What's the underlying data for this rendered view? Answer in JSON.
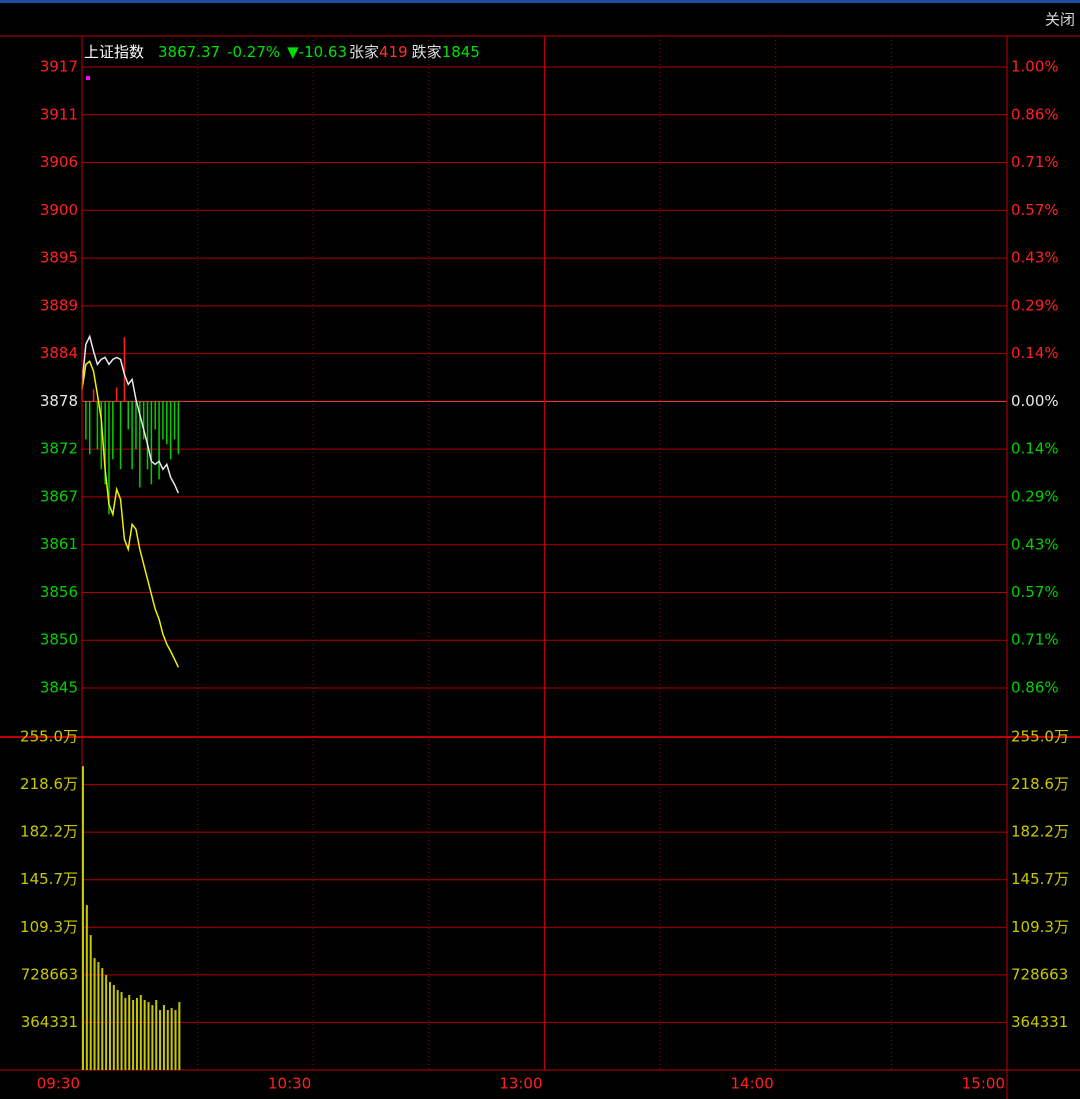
{
  "toolbar": {
    "close": "关闭"
  },
  "chart_data": [
    {
      "type": "line",
      "header": {
        "name": "上证指数",
        "price": "3867.37",
        "change_pct": "-0.27%",
        "change": "▼-10.63",
        "up_label": "张家",
        "up_count": "419",
        "down_label": "跌家",
        "down_count": "1845"
      },
      "x": [
        0,
        1,
        2,
        3,
        4,
        5,
        6,
        7,
        8,
        9,
        10,
        11,
        12,
        13,
        14,
        15,
        16,
        17,
        18,
        19,
        20,
        21,
        22,
        23,
        24,
        25
      ],
      "xlim": [
        0,
        240
      ],
      "series": [
        {
          "name": "上证指数",
          "color": "#e8e8e8",
          "values": [
            3879.97,
            3884.61,
            3885.53,
            3883.8,
            3882.29,
            3882.87,
            3883.1,
            3882.29,
            3882.87,
            3883.1,
            3882.87,
            3881.13,
            3879.97,
            3880.55,
            3878.23,
            3876.49,
            3874.75,
            3873.02,
            3871.05,
            3870.7,
            3871.05,
            3870.12,
            3870.7,
            3869.19,
            3868.38,
            3867.37
          ]
        },
        {
          "color": "#f0f000",
          "values": [
            3879.39,
            3882.29,
            3882.64,
            3881.48,
            3878.81,
            3875.91,
            3870.12,
            3866.06,
            3864.9,
            3867.8,
            3866.64,
            3862.01,
            3860.85,
            3863.74,
            3863.16,
            3860.85,
            3859.11,
            3857.37,
            3855.63,
            3853.89,
            3852.73,
            3851.0,
            3849.84,
            3849.02,
            3848.1,
            3847.17
          ]
        }
      ],
      "bars": {
        "baseline": 3878,
        "up_color": "#ff2020",
        "down_color": "#00d000",
        "values": [
          3879.97,
          3873.6,
          3871.86,
          3879.39,
          3872.44,
          3870.12,
          3868.38,
          3864.9,
          3871.28,
          3879.62,
          3870.12,
          3885.42,
          3874.75,
          3870.12,
          3872.44,
          3868.03,
          3873.6,
          3870.12,
          3868.38,
          3874.75,
          3868.96,
          3873.6,
          3873.02,
          3871.28,
          3873.6,
          3871.86
        ]
      },
      "ylim": [
        3844.76,
        3916.78
      ],
      "yticks": [
        {
          "value": 3916.78,
          "label": "3917"
        },
        {
          "value": 3911.24,
          "label": "3911"
        },
        {
          "value": 3905.7,
          "label": "3906"
        },
        {
          "value": 3900.16,
          "label": "3900"
        },
        {
          "value": 3894.62,
          "label": "3895"
        },
        {
          "value": 3889.08,
          "label": "3889"
        },
        {
          "value": 3883.54,
          "label": "3884"
        },
        3878,
        {
          "value": 3872.46,
          "label": "3872"
        },
        {
          "value": 3866.92,
          "label": "3867"
        },
        {
          "value": 3861.38,
          "label": "3861"
        },
        {
          "value": 3855.84,
          "label": "3856"
        },
        {
          "value": 3850.3,
          "label": "3850"
        },
        {
          "value": 3844.76,
          "label": "3845"
        }
      ],
      "y2lim": [
        -0.857,
        1.0
      ],
      "y2ticks": [
        {
          "value": 1.0,
          "label": "1.00%"
        },
        {
          "value": 0.857,
          "label": "0.86%"
        },
        {
          "value": 0.714,
          "label": "0.71%"
        },
        {
          "value": 0.571,
          "label": "0.57%"
        },
        {
          "value": 0.429,
          "label": "0.43%"
        },
        {
          "value": 0.286,
          "label": "0.29%"
        },
        {
          "value": 0.143,
          "label": "0.14%"
        },
        {
          "value": 0,
          "label": "0.00%"
        },
        {
          "value": -0.143,
          "label": "0.14%"
        },
        {
          "value": -0.286,
          "label": "0.29%"
        },
        {
          "value": -0.429,
          "label": "0.43%"
        },
        {
          "value": -0.571,
          "label": "0.57%"
        },
        {
          "value": -0.714,
          "label": "0.71%"
        },
        {
          "value": -0.857,
          "label": "0.86%"
        }
      ],
      "grid": true
    },
    {
      "type": "bar",
      "x": [
        0,
        1,
        2,
        3,
        4,
        5,
        6,
        7,
        8,
        9,
        10,
        11,
        12,
        13,
        14,
        15,
        16,
        17,
        18,
        19,
        20,
        21,
        22,
        23,
        24,
        25
      ],
      "values": [
        2326800,
        1262900,
        1033300,
        857200,
        826600,
        780700,
        727100,
        673600,
        650600,
        612300,
        597000,
        551100,
        574100,
        535800,
        551100,
        574100,
        535800,
        520500,
        497500,
        535800,
        459200,
        497500,
        459200,
        474500,
        459200,
        520500
      ],
      "color": "#c8c800",
      "xlim": [
        0,
        240
      ],
      "xticks": [
        {
          "value": 0,
          "label": "09:30"
        },
        {
          "value": 60,
          "label": "10:30"
        },
        {
          "value": 120,
          "label": "13:00"
        },
        {
          "value": 180,
          "label": "14:00"
        },
        {
          "value": 240,
          "label": "15:00"
        }
      ],
      "x_minor_grid": [
        30,
        90,
        150,
        210
      ],
      "ylim": [
        0,
        2550317
      ],
      "yticks": [
        {
          "value": 2550317,
          "label": "255.0万"
        },
        {
          "value": 2185986,
          "label": "218.6万"
        },
        {
          "value": 1821655,
          "label": "182.2万"
        },
        {
          "value": 1457324,
          "label": "145.7万"
        },
        {
          "value": 1092993,
          "label": "109.3万"
        },
        728663,
        364331
      ],
      "grid": true
    }
  ]
}
